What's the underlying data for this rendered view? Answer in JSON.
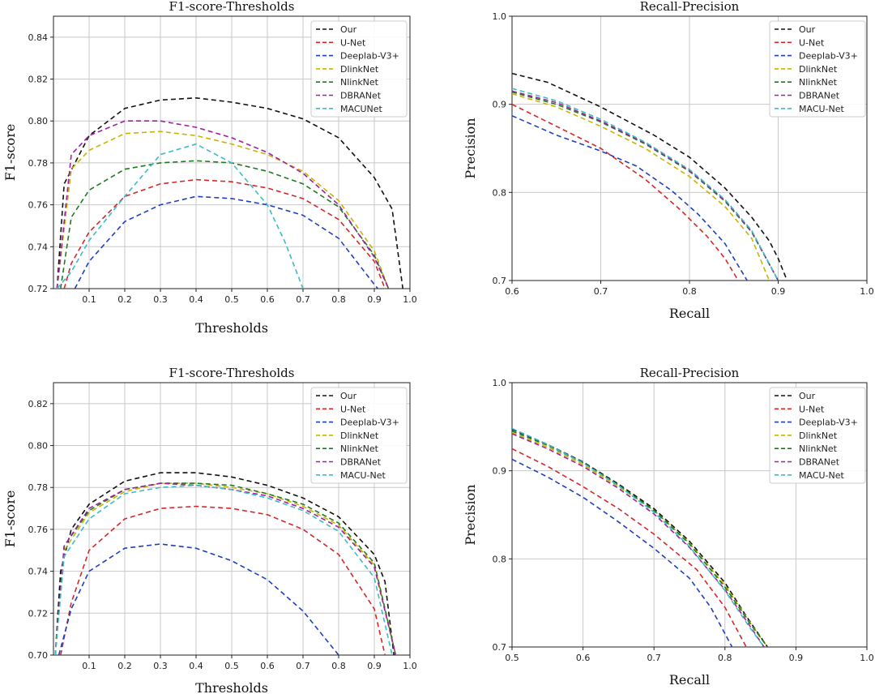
{
  "colors": {
    "Our": "#111111",
    "U-Net": "#d62728",
    "Deeplab-V3+": "#1f3fbf",
    "DlinkNet": "#c8b400",
    "NlinkNet": "#1f7a1f",
    "DBRANet": "#a020a0",
    "MACUNet": "#3bbcc8",
    "MACU-Net": "#3bbcc8"
  },
  "chart_data": [
    {
      "type": "line",
      "title": "F1-score-Thresholds",
      "xlabel": "Thresholds",
      "ylabel": "F1-score",
      "xlim": [
        0,
        1.0
      ],
      "ylim": [
        0.72,
        0.85
      ],
      "xticks": [
        "0.1",
        "0.2",
        "0.3",
        "0.4",
        "0.5",
        "0.6",
        "0.7",
        "0.8",
        "0.9",
        "1.0"
      ],
      "xtick_values": [
        0.1,
        0.2,
        0.3,
        0.4,
        0.5,
        0.6,
        0.7,
        0.8,
        0.9,
        1.0
      ],
      "yticks": [
        "0.72",
        "0.74",
        "0.76",
        "0.78",
        "0.80",
        "0.82",
        "0.84"
      ],
      "ytick_values": [
        0.72,
        0.74,
        0.76,
        0.78,
        0.8,
        0.82,
        0.84
      ],
      "grid": true,
      "legend_position": "top-right",
      "series": [
        {
          "name": "Our",
          "x": [
            0.01,
            0.03,
            0.1,
            0.2,
            0.3,
            0.4,
            0.5,
            0.6,
            0.7,
            0.8,
            0.9,
            0.95,
            0.98
          ],
          "y": [
            0.72,
            0.77,
            0.793,
            0.806,
            0.81,
            0.811,
            0.809,
            0.806,
            0.801,
            0.792,
            0.773,
            0.758,
            0.72
          ]
        },
        {
          "name": "U-Net",
          "x": [
            0.03,
            0.05,
            0.1,
            0.2,
            0.3,
            0.4,
            0.5,
            0.6,
            0.7,
            0.8,
            0.9,
            0.93
          ],
          "y": [
            0.72,
            0.732,
            0.747,
            0.764,
            0.77,
            0.772,
            0.771,
            0.768,
            0.763,
            0.753,
            0.733,
            0.72
          ]
        },
        {
          "name": "Deeplab-V3+",
          "x": [
            0.06,
            0.1,
            0.2,
            0.3,
            0.4,
            0.5,
            0.6,
            0.7,
            0.8,
            0.9,
            0.91
          ],
          "y": [
            0.72,
            0.733,
            0.752,
            0.76,
            0.764,
            0.763,
            0.76,
            0.755,
            0.744,
            0.722,
            0.72
          ]
        },
        {
          "name": "DlinkNet",
          "x": [
            0.01,
            0.05,
            0.1,
            0.2,
            0.3,
            0.4,
            0.5,
            0.6,
            0.7,
            0.8,
            0.9,
            0.94
          ],
          "y": [
            0.72,
            0.777,
            0.786,
            0.794,
            0.795,
            0.793,
            0.789,
            0.784,
            0.776,
            0.762,
            0.738,
            0.72
          ]
        },
        {
          "name": "NlinkNet",
          "x": [
            0.02,
            0.05,
            0.1,
            0.2,
            0.3,
            0.4,
            0.5,
            0.6,
            0.7,
            0.8,
            0.9,
            0.94
          ],
          "y": [
            0.72,
            0.754,
            0.767,
            0.777,
            0.78,
            0.781,
            0.78,
            0.776,
            0.77,
            0.759,
            0.736,
            0.72
          ]
        },
        {
          "name": "DBRANet",
          "x": [
            0.01,
            0.05,
            0.1,
            0.2,
            0.3,
            0.4,
            0.5,
            0.6,
            0.7,
            0.8,
            0.9,
            0.94
          ],
          "y": [
            0.72,
            0.784,
            0.793,
            0.8,
            0.8,
            0.797,
            0.792,
            0.785,
            0.775,
            0.76,
            0.735,
            0.72
          ]
        },
        {
          "name": "MACUNet",
          "x": [
            0.01,
            0.05,
            0.1,
            0.2,
            0.3,
            0.4,
            0.5,
            0.6,
            0.65,
            0.7
          ],
          "y": [
            0.72,
            0.728,
            0.743,
            0.764,
            0.784,
            0.789,
            0.78,
            0.76,
            0.742,
            0.72
          ]
        }
      ]
    },
    {
      "type": "line",
      "title": "Recall-Precision",
      "xlabel": "Recall",
      "ylabel": "Precision",
      "xlim": [
        0.6,
        1.0
      ],
      "ylim": [
        0.7,
        1.0
      ],
      "xticks": [
        "0.6",
        "0.7",
        "0.8",
        "0.9",
        "1.0"
      ],
      "xtick_values": [
        0.6,
        0.7,
        0.8,
        0.9,
        1.0
      ],
      "yticks": [
        "0.7",
        "0.8",
        "0.9",
        "1.0"
      ],
      "ytick_values": [
        0.7,
        0.8,
        0.9,
        1.0
      ],
      "grid": true,
      "legend_position": "top-right",
      "series": [
        {
          "name": "Our",
          "x": [
            0.6,
            0.64,
            0.7,
            0.76,
            0.8,
            0.84,
            0.87,
            0.89,
            0.9,
            0.91
          ],
          "y": [
            0.935,
            0.925,
            0.897,
            0.865,
            0.84,
            0.805,
            0.772,
            0.745,
            0.725,
            0.7
          ]
        },
        {
          "name": "U-Net",
          "x": [
            0.6,
            0.65,
            0.7,
            0.75,
            0.79,
            0.82,
            0.84,
            0.855
          ],
          "y": [
            0.9,
            0.875,
            0.85,
            0.815,
            0.78,
            0.75,
            0.725,
            0.7
          ]
        },
        {
          "name": "Deeplab-V3+",
          "x": [
            0.6,
            0.65,
            0.7,
            0.74,
            0.78,
            0.81,
            0.84,
            0.865
          ],
          "y": [
            0.887,
            0.865,
            0.847,
            0.83,
            0.802,
            0.775,
            0.742,
            0.7
          ]
        },
        {
          "name": "DlinkNet",
          "x": [
            0.6,
            0.65,
            0.7,
            0.75,
            0.8,
            0.84,
            0.87,
            0.89
          ],
          "y": [
            0.912,
            0.897,
            0.875,
            0.85,
            0.818,
            0.784,
            0.748,
            0.7
          ]
        },
        {
          "name": "NlinkNet",
          "x": [
            0.6,
            0.65,
            0.7,
            0.75,
            0.8,
            0.84,
            0.87,
            0.9
          ],
          "y": [
            0.914,
            0.9,
            0.88,
            0.855,
            0.824,
            0.79,
            0.755,
            0.7
          ]
        },
        {
          "name": "DBRANet",
          "x": [
            0.6,
            0.65,
            0.7,
            0.75,
            0.8,
            0.84,
            0.87,
            0.9
          ],
          "y": [
            0.915,
            0.902,
            0.881,
            0.856,
            0.825,
            0.791,
            0.756,
            0.7
          ]
        },
        {
          "name": "MACU-Net",
          "x": [
            0.6,
            0.65,
            0.7,
            0.75,
            0.8,
            0.84,
            0.87,
            0.9
          ],
          "y": [
            0.918,
            0.904,
            0.883,
            0.857,
            0.826,
            0.792,
            0.757,
            0.7
          ]
        }
      ]
    },
    {
      "type": "line",
      "title": "F1-score-Thresholds",
      "xlabel": "Thresholds",
      "ylabel": "F1-score",
      "xlim": [
        0,
        1.0
      ],
      "ylim": [
        0.7,
        0.83
      ],
      "xticks": [
        "0.1",
        "0.2",
        "0.3",
        "0.4",
        "0.5",
        "0.6",
        "0.7",
        "0.8",
        "0.9",
        "1.0"
      ],
      "xtick_values": [
        0.1,
        0.2,
        0.3,
        0.4,
        0.5,
        0.6,
        0.7,
        0.8,
        0.9,
        1.0
      ],
      "yticks": [
        "0.70",
        "0.72",
        "0.74",
        "0.76",
        "0.78",
        "0.80",
        "0.82"
      ],
      "ytick_values": [
        0.7,
        0.72,
        0.74,
        0.76,
        0.78,
        0.8,
        0.82
      ],
      "grid": true,
      "legend_position": "top-right",
      "series": [
        {
          "name": "Our",
          "x": [
            0.005,
            0.02,
            0.05,
            0.1,
            0.2,
            0.3,
            0.4,
            0.5,
            0.6,
            0.7,
            0.8,
            0.9,
            0.93,
            0.955
          ],
          "y": [
            0.7,
            0.74,
            0.76,
            0.772,
            0.783,
            0.787,
            0.787,
            0.785,
            0.781,
            0.775,
            0.766,
            0.748,
            0.735,
            0.7
          ]
        },
        {
          "name": "U-Net",
          "x": [
            0.02,
            0.05,
            0.1,
            0.2,
            0.3,
            0.4,
            0.5,
            0.6,
            0.7,
            0.8,
            0.9,
            0.93
          ],
          "y": [
            0.7,
            0.725,
            0.75,
            0.765,
            0.77,
            0.771,
            0.77,
            0.767,
            0.76,
            0.748,
            0.722,
            0.7
          ]
        },
        {
          "name": "Deeplab-V3+",
          "x": [
            0.015,
            0.05,
            0.1,
            0.2,
            0.3,
            0.4,
            0.5,
            0.6,
            0.7,
            0.8
          ],
          "y": [
            0.7,
            0.722,
            0.74,
            0.751,
            0.753,
            0.751,
            0.745,
            0.736,
            0.721,
            0.7
          ]
        },
        {
          "name": "DlinkNet",
          "x": [
            0.005,
            0.03,
            0.1,
            0.2,
            0.3,
            0.4,
            0.5,
            0.6,
            0.7,
            0.8,
            0.9,
            0.96
          ],
          "y": [
            0.7,
            0.75,
            0.768,
            0.778,
            0.782,
            0.782,
            0.78,
            0.777,
            0.771,
            0.762,
            0.743,
            0.7
          ]
        },
        {
          "name": "NlinkNet",
          "x": [
            0.005,
            0.03,
            0.1,
            0.2,
            0.3,
            0.4,
            0.5,
            0.6,
            0.7,
            0.8,
            0.9,
            0.96
          ],
          "y": [
            0.7,
            0.752,
            0.769,
            0.779,
            0.782,
            0.782,
            0.781,
            0.777,
            0.772,
            0.763,
            0.744,
            0.7
          ]
        },
        {
          "name": "DBRANet",
          "x": [
            0.005,
            0.03,
            0.1,
            0.2,
            0.3,
            0.4,
            0.5,
            0.6,
            0.7,
            0.8,
            0.9,
            0.96
          ],
          "y": [
            0.7,
            0.752,
            0.77,
            0.779,
            0.782,
            0.781,
            0.779,
            0.776,
            0.77,
            0.761,
            0.742,
            0.7
          ]
        },
        {
          "name": "MACU-Net",
          "x": [
            0.005,
            0.03,
            0.1,
            0.2,
            0.3,
            0.4,
            0.5,
            0.6,
            0.7,
            0.8,
            0.9,
            0.95
          ],
          "y": [
            0.7,
            0.747,
            0.765,
            0.777,
            0.78,
            0.781,
            0.779,
            0.775,
            0.769,
            0.759,
            0.737,
            0.7
          ]
        }
      ]
    },
    {
      "type": "line",
      "title": "Recall-Precision",
      "xlabel": "Recall",
      "ylabel": "Precision",
      "xlim": [
        0.5,
        1.0
      ],
      "ylim": [
        0.7,
        1.0
      ],
      "xticks": [
        "0.5",
        "0.6",
        "0.7",
        "0.8",
        "0.9",
        "1.0"
      ],
      "xtick_values": [
        0.5,
        0.6,
        0.7,
        0.8,
        0.9,
        1.0
      ],
      "yticks": [
        "0.7",
        "0.8",
        "0.9",
        "1.0"
      ],
      "ytick_values": [
        0.7,
        0.8,
        0.9,
        1.0
      ],
      "grid": true,
      "legend_position": "top-right",
      "series": [
        {
          "name": "Our",
          "x": [
            0.5,
            0.55,
            0.6,
            0.65,
            0.7,
            0.75,
            0.8,
            0.83,
            0.86
          ],
          "y": [
            0.947,
            0.93,
            0.91,
            0.885,
            0.857,
            0.82,
            0.773,
            0.735,
            0.7
          ]
        },
        {
          "name": "U-Net",
          "x": [
            0.5,
            0.55,
            0.6,
            0.65,
            0.7,
            0.76,
            0.8,
            0.83
          ],
          "y": [
            0.925,
            0.905,
            0.882,
            0.857,
            0.828,
            0.788,
            0.745,
            0.7
          ]
        },
        {
          "name": "Deeplab-V3+",
          "x": [
            0.5,
            0.55,
            0.6,
            0.65,
            0.7,
            0.75,
            0.78,
            0.81
          ],
          "y": [
            0.913,
            0.893,
            0.87,
            0.842,
            0.812,
            0.778,
            0.745,
            0.7
          ]
        },
        {
          "name": "DlinkNet",
          "x": [
            0.5,
            0.55,
            0.6,
            0.65,
            0.7,
            0.75,
            0.8,
            0.835,
            0.86
          ],
          "y": [
            0.943,
            0.927,
            0.907,
            0.882,
            0.855,
            0.818,
            0.77,
            0.728,
            0.7
          ]
        },
        {
          "name": "NlinkNet",
          "x": [
            0.5,
            0.55,
            0.6,
            0.65,
            0.7,
            0.75,
            0.8,
            0.835,
            0.86
          ],
          "y": [
            0.945,
            0.929,
            0.909,
            0.884,
            0.855,
            0.817,
            0.768,
            0.727,
            0.7
          ]
        },
        {
          "name": "DBRANet",
          "x": [
            0.5,
            0.55,
            0.6,
            0.65,
            0.7,
            0.75,
            0.8,
            0.835,
            0.855
          ],
          "y": [
            0.942,
            0.925,
            0.905,
            0.88,
            0.851,
            0.813,
            0.765,
            0.724,
            0.7
          ]
        },
        {
          "name": "MACU-Net",
          "x": [
            0.5,
            0.55,
            0.6,
            0.65,
            0.7,
            0.75,
            0.8,
            0.835,
            0.855
          ],
          "y": [
            0.948,
            0.93,
            0.909,
            0.883,
            0.853,
            0.814,
            0.764,
            0.722,
            0.7
          ]
        }
      ]
    }
  ]
}
